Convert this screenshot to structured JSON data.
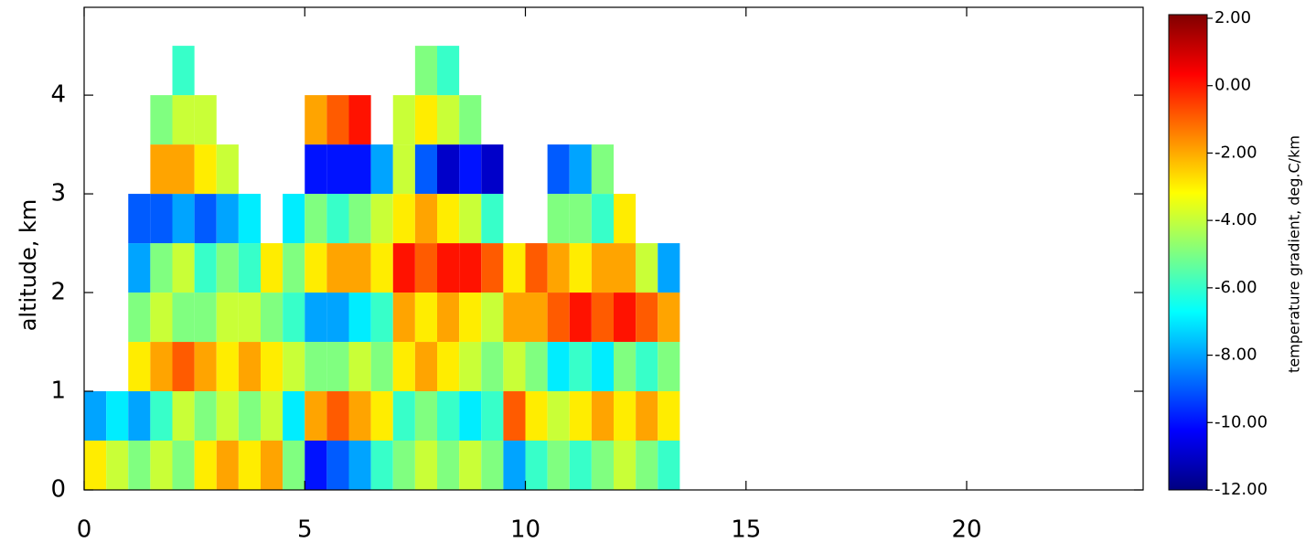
{
  "chart_data": {
    "type": "heatmap",
    "ylabel": "altitude, km",
    "colorbar_label": "temperature gradient, deg.C/km",
    "xlim": [
      0,
      24
    ],
    "xticks": [
      0,
      5,
      10,
      15,
      20
    ],
    "ylim": [
      0,
      4.89
    ],
    "yticks": [
      0,
      1,
      2,
      3,
      4
    ],
    "xbins": [
      0,
      0.5,
      1,
      1.5,
      2,
      2.5,
      3,
      3.5,
      4,
      4.5,
      5,
      5.5,
      6,
      6.5,
      7,
      7.5,
      8,
      8.5,
      9,
      9.5,
      10,
      10.5,
      11,
      11.5,
      12,
      12.5,
      13,
      13.5
    ],
    "ybins": [
      0,
      0.5,
      1,
      1.5,
      2,
      2.5,
      3,
      3.5,
      4,
      4.5
    ],
    "values": [
      [
        -3,
        -8,
        null,
        null,
        null,
        null,
        null,
        null,
        null
      ],
      [
        -4,
        -7,
        null,
        null,
        null,
        null,
        null,
        null,
        null
      ],
      [
        -5,
        -8,
        -3,
        -5,
        -8,
        -9,
        null,
        null,
        null
      ],
      [
        -4,
        -6,
        -2,
        -4,
        -5,
        -9,
        -2,
        -5,
        null
      ],
      [
        -5,
        -4,
        -1,
        -5,
        -4,
        -8,
        -2,
        -4,
        -6
      ],
      [
        -3,
        -5,
        -2,
        -5,
        -6,
        -9,
        -3,
        -4,
        null
      ],
      [
        -2,
        -4,
        -3,
        -4,
        -5,
        -8,
        -4,
        null,
        null
      ],
      [
        -3,
        -5,
        -2,
        -4,
        -6,
        -7,
        null,
        null,
        null
      ],
      [
        -2,
        -4,
        -3,
        -5,
        -3,
        null,
        null,
        null,
        null
      ],
      [
        -5,
        -7,
        -4,
        -6,
        -5,
        -7,
        null,
        null,
        null
      ],
      [
        -10,
        -2,
        -5,
        -8,
        -3,
        -5,
        -10,
        -2,
        null
      ],
      [
        -9,
        -1,
        -5,
        -8,
        -2,
        -6,
        -10,
        -1,
        null
      ],
      [
        -8,
        -2,
        -4,
        -7,
        -2,
        -5,
        -10,
        0,
        null
      ],
      [
        -6,
        -3,
        -5,
        -6,
        -3,
        -4,
        -8,
        null,
        null
      ],
      [
        -5,
        -6,
        -3,
        -2,
        0,
        -3,
        -4,
        -4,
        null
      ],
      [
        -4,
        -5,
        -2,
        -3,
        -1,
        -2,
        -9,
        -3,
        -5
      ],
      [
        -5,
        -6,
        -3,
        -2,
        0,
        -3,
        -11,
        -4,
        -6
      ],
      [
        -4,
        -7,
        -4,
        -3,
        0,
        -4,
        -10,
        -5,
        null
      ],
      [
        -5,
        -6,
        -5,
        -4,
        -1,
        -6,
        -11,
        null,
        null
      ],
      [
        -8,
        -1,
        -4,
        -2,
        -3,
        null,
        null,
        null,
        null
      ],
      [
        -6,
        -3,
        -5,
        -2,
        -1,
        null,
        null,
        null,
        null
      ],
      [
        -5,
        -4,
        -7,
        -1,
        -2,
        -5,
        -9,
        null,
        null
      ],
      [
        -6,
        -3,
        -6,
        0,
        -3,
        -5,
        -8,
        null,
        null
      ],
      [
        -5,
        -2,
        -7,
        -1,
        -2,
        -6,
        -5,
        null,
        null
      ],
      [
        -4,
        -3,
        -5,
        0,
        -2,
        -3,
        null,
        null,
        null
      ],
      [
        -5,
        -2,
        -6,
        -1,
        -4,
        null,
        null,
        null,
        null
      ],
      [
        -6,
        -3,
        -5,
        -2,
        -8,
        null,
        null,
        null,
        null
      ]
    ],
    "clim": [
      -12,
      2
    ],
    "colorscale": [
      "#000080",
      "#0000ff",
      "#0080ff",
      "#00ffff",
      "#80ff80",
      "#ffff00",
      "#ff8000",
      "#ff0000",
      "#800000"
    ],
    "cticks": [
      {
        "value": 2,
        "label": "2.00"
      },
      {
        "value": 0,
        "label": "0.00"
      },
      {
        "value": -2,
        "label": "-2.00"
      },
      {
        "value": -4,
        "label": "-4.00"
      },
      {
        "value": -6,
        "label": "-6.00"
      },
      {
        "value": -8,
        "label": "-8.00"
      },
      {
        "value": -10,
        "label": "-10.00"
      },
      {
        "value": -12,
        "label": "-12.00"
      }
    ]
  }
}
